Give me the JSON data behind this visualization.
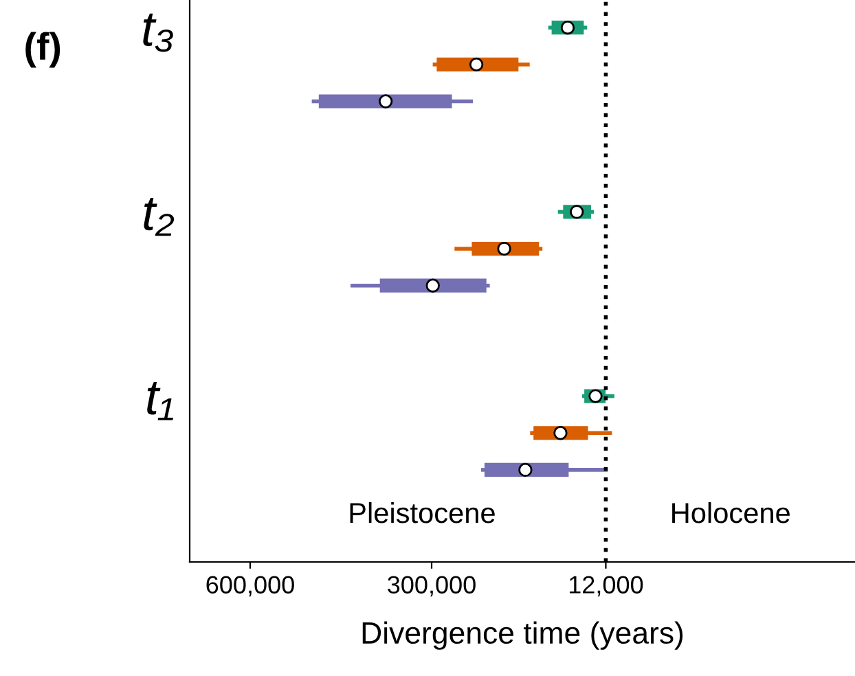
{
  "chart_data": {
    "type": "box",
    "orientation": "horizontal",
    "categories": [
      "t₃",
      "t₂",
      "t₁"
    ],
    "series": [
      {
        "color": "#1b9e77",
        "boxes": [
          {
            "low": 46000,
            "q1": 50000,
            "median": 75000,
            "q3": 100000,
            "high": 104000
          },
          {
            "low": 35000,
            "q1": 38000,
            "median": 60000,
            "q3": 81000,
            "high": 88000
          },
          {
            "low": 1000,
            "q1": 14000,
            "median": 29000,
            "q3": 46000,
            "high": 48000
          }
        ]
      },
      {
        "color": "#d95f02",
        "boxes": [
          {
            "low": 141000,
            "q1": 158000,
            "median": 226000,
            "q3": 290000,
            "high": 295000
          },
          {
            "low": 120000,
            "q1": 124000,
            "median": 180000,
            "q3": 232000,
            "high": 259000
          },
          {
            "low": 5000,
            "q1": 43000,
            "median": 87000,
            "q3": 130000,
            "high": 134000
          }
        ]
      },
      {
        "color": "#7570b3",
        "boxes": [
          {
            "low": 235000,
            "q1": 268000,
            "median": 376000,
            "q3": 485000,
            "high": 495000
          },
          {
            "low": 207000,
            "q1": 211000,
            "median": 298000,
            "q3": 384000,
            "high": 431000
          },
          {
            "low": 12000,
            "q1": 75000,
            "median": 145000,
            "q3": 211000,
            "high": 215000
          }
        ]
      }
    ],
    "xlim": [
      700000,
      -400000
    ],
    "xticks": [
      {
        "value": 600000,
        "label": "600,000"
      },
      {
        "value": 300000,
        "label": "300,000"
      },
      {
        "value": 12000,
        "label": "12,000"
      }
    ],
    "xlabel": "Divergence time (years)",
    "ref_lines": [
      {
        "axis": "x",
        "value": 12000,
        "line_style": "dotted",
        "color": "#000000"
      }
    ],
    "annotations": [
      "Pleistocene",
      "Holocene",
      "(f)"
    ],
    "grid": false,
    "legend": false
  }
}
